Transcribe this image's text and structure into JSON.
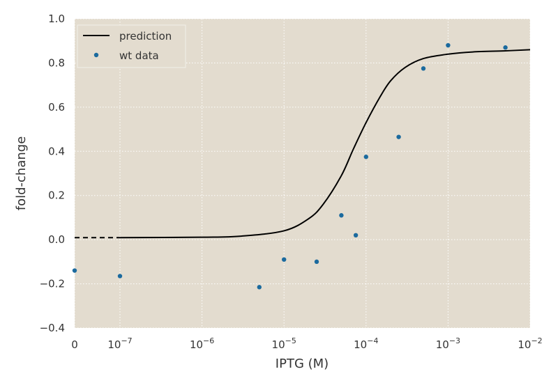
{
  "chart_data": {
    "type": "line",
    "title": "",
    "xlabel": "IPTG (M)",
    "ylabel": "fold-change",
    "x_scale": "log",
    "xlim": [
      "0",
      0.01
    ],
    "ylim": [
      -0.4,
      1.0
    ],
    "x_tick_labels": [
      {
        "base": "0",
        "exp": ""
      },
      {
        "base": "10",
        "exp": "−7"
      },
      {
        "base": "10",
        "exp": "−6"
      },
      {
        "base": "10",
        "exp": "−5"
      },
      {
        "base": "10",
        "exp": "−4"
      },
      {
        "base": "10",
        "exp": "−3"
      },
      {
        "base": "10",
        "exp": "−2"
      }
    ],
    "y_ticks": [
      -0.4,
      -0.2,
      0.0,
      0.2,
      0.4,
      0.6,
      0.8,
      1.0
    ],
    "y_tick_labels": [
      "−0.4",
      "−0.2",
      "0.0",
      "0.2",
      "0.4",
      "0.6",
      "0.8",
      "1.0"
    ],
    "grid": true,
    "legend_position": "top-left",
    "colors": {
      "background": "#e3dccf",
      "grid": "#ffffff",
      "prediction": "#000000",
      "data": "#1b6a9e"
    },
    "prediction": {
      "name": "prediction",
      "zero_value": 0.009,
      "x": [
        1e-07,
        1e-06,
        3e-06,
        1e-05,
        2e-05,
        3e-05,
        5e-05,
        7e-05,
        0.0001,
        0.00015,
        0.0002,
        0.0003,
        0.0005,
        0.001,
        0.002,
        0.005,
        0.01
      ],
      "y": [
        0.009,
        0.011,
        0.016,
        0.04,
        0.095,
        0.16,
        0.29,
        0.41,
        0.53,
        0.65,
        0.72,
        0.78,
        0.82,
        0.84,
        0.85,
        0.855,
        0.86
      ]
    },
    "series": [
      {
        "name": "wt data",
        "zero_value": -0.14,
        "x": [
          1e-07,
          5e-06,
          1e-05,
          2.5e-05,
          5e-05,
          7.5e-05,
          0.0001,
          0.00025,
          0.0005,
          0.001,
          0.005
        ],
        "y": [
          -0.165,
          -0.215,
          -0.09,
          -0.1,
          0.11,
          0.02,
          0.375,
          0.465,
          0.775,
          0.88,
          0.87
        ]
      }
    ]
  }
}
